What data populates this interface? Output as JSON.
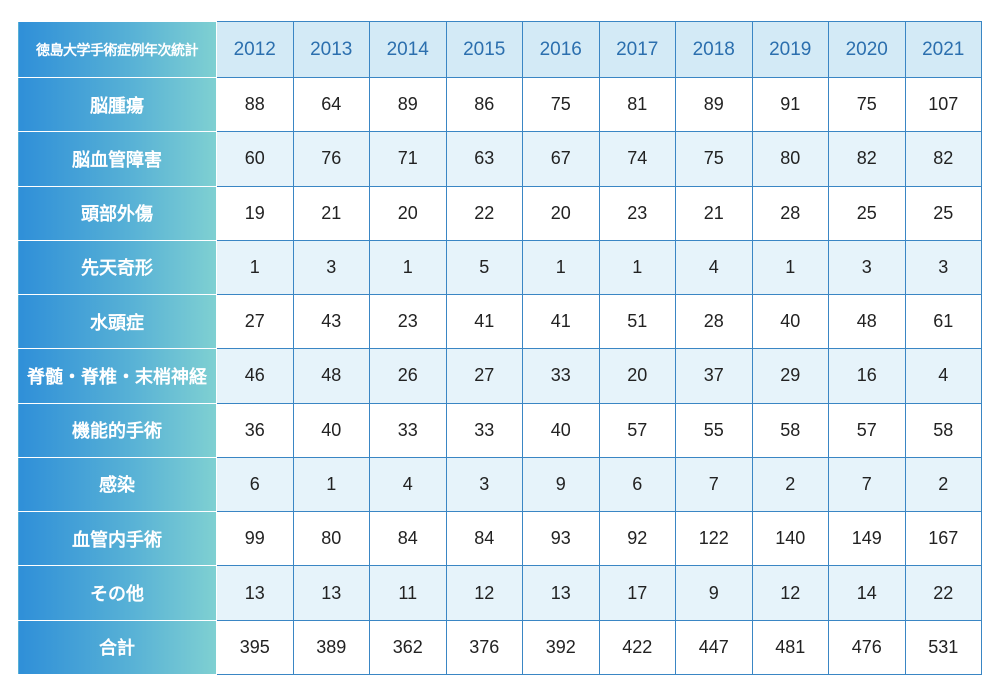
{
  "chart_data": {
    "type": "table",
    "corner_label": "徳島大学手術症例年次統計",
    "columns": [
      "2012",
      "2013",
      "2014",
      "2015",
      "2016",
      "2017",
      "2018",
      "2019",
      "2020",
      "2021"
    ],
    "rows": [
      {
        "label": "脳腫瘍",
        "values": [
          88,
          64,
          89,
          86,
          75,
          81,
          89,
          91,
          75,
          107
        ]
      },
      {
        "label": "脳血管障害",
        "values": [
          60,
          76,
          71,
          63,
          67,
          74,
          75,
          80,
          82,
          82
        ]
      },
      {
        "label": "頭部外傷",
        "values": [
          19,
          21,
          20,
          22,
          20,
          23,
          21,
          28,
          25,
          25
        ]
      },
      {
        "label": "先天奇形",
        "values": [
          1,
          3,
          1,
          5,
          1,
          1,
          4,
          1,
          3,
          3
        ]
      },
      {
        "label": "水頭症",
        "values": [
          27,
          43,
          23,
          41,
          41,
          51,
          28,
          40,
          48,
          61
        ]
      },
      {
        "label": "脊髄・脊椎・末梢神経",
        "values": [
          46,
          48,
          26,
          27,
          33,
          20,
          37,
          29,
          16,
          4
        ]
      },
      {
        "label": "機能的手術",
        "values": [
          36,
          40,
          33,
          33,
          40,
          57,
          55,
          58,
          57,
          58
        ]
      },
      {
        "label": "感染",
        "values": [
          6,
          1,
          4,
          3,
          9,
          6,
          7,
          2,
          7,
          2
        ]
      },
      {
        "label": "血管内手術",
        "values": [
          99,
          80,
          84,
          84,
          93,
          92,
          122,
          140,
          149,
          167
        ]
      },
      {
        "label": "その他",
        "values": [
          13,
          13,
          11,
          12,
          13,
          17,
          9,
          12,
          14,
          22
        ]
      },
      {
        "label": "合計",
        "values": [
          395,
          389,
          362,
          376,
          392,
          422,
          447,
          481,
          476,
          531
        ]
      }
    ]
  }
}
